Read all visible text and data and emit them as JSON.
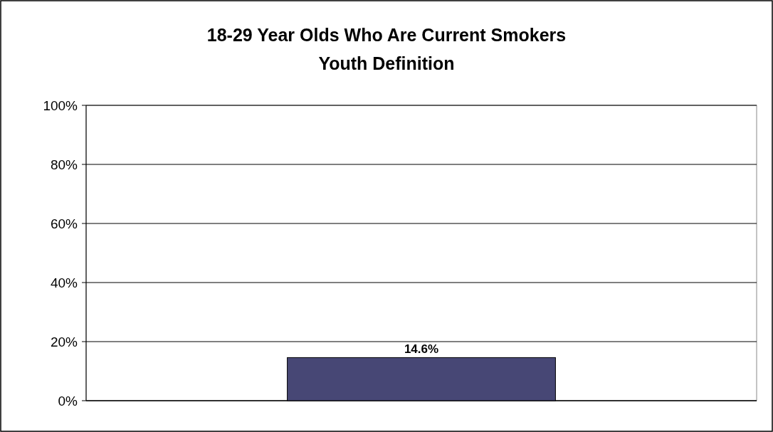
{
  "chart_data": {
    "type": "bar",
    "title": "18-29 Year Olds Who Are Current Smokers",
    "subtitle": "Youth Definition",
    "categories": [
      null
    ],
    "values": [
      14.6
    ],
    "color": "#474775",
    "value_labels": [
      "14.6%"
    ],
    "ylim": [
      0,
      100
    ],
    "yticks": [
      {
        "value": 0,
        "label": "0%"
      },
      {
        "value": 20,
        "label": "20%"
      },
      {
        "value": 40,
        "label": "40%"
      },
      {
        "value": 60,
        "label": "60%"
      },
      {
        "value": 80,
        "label": "80%"
      },
      {
        "value": 100,
        "label": "100%"
      }
    ],
    "grid": "y"
  }
}
